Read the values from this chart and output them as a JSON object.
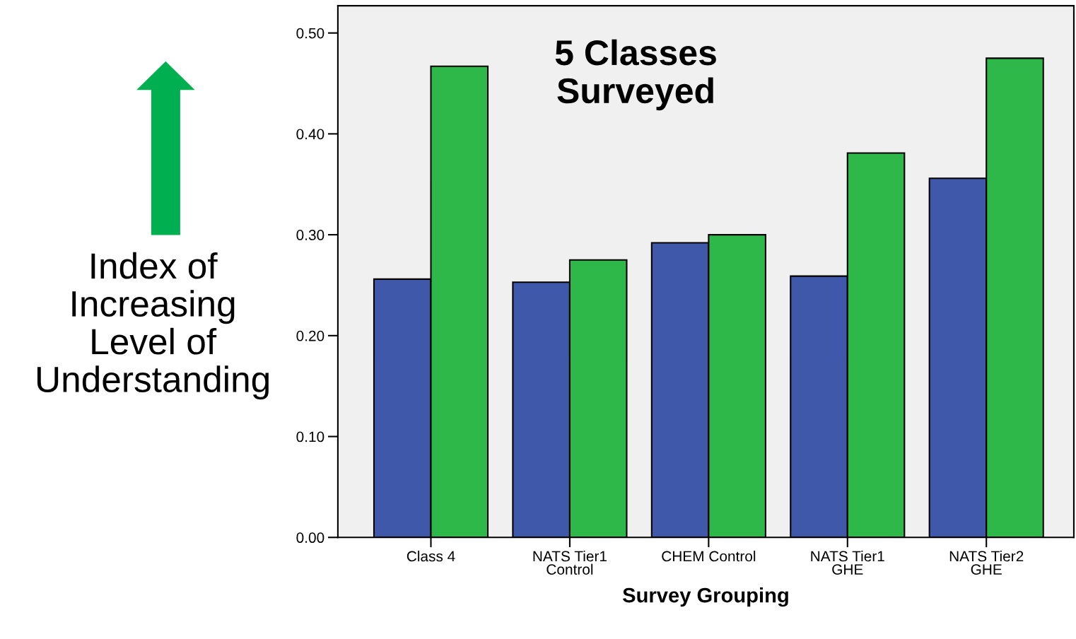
{
  "chart_data": {
    "type": "bar",
    "title": "5 Classes\nSurveyed",
    "xlabel": "Survey Grouping",
    "ylabel": "Index of\nIncreasing\nLevel of\nUnderstanding",
    "categories": [
      "Class 4",
      "NATS Tier1\nControl",
      "CHEM Control",
      "NATS Tier1\nGHE",
      "NATS Tier2\nGHE"
    ],
    "series": [
      {
        "color": "#3f58aa",
        "values": [
          0.256,
          0.253,
          0.292,
          0.259,
          0.356
        ]
      },
      {
        "color": "#2eb84a",
        "values": [
          0.467,
          0.275,
          0.3,
          0.381,
          0.475
        ]
      }
    ],
    "ylim": [
      0,
      0.527
    ],
    "yticks": [
      {
        "value": 0,
        "label": "0.00"
      },
      {
        "value": 0.1,
        "label": "0.10"
      },
      {
        "value": 0.2,
        "label": "0.20"
      },
      {
        "value": 0.3,
        "label": "0.30"
      },
      {
        "value": 0.4,
        "label": "0.40"
      },
      {
        "value": 0.5,
        "label": "0.50"
      }
    ],
    "grid": false
  }
}
